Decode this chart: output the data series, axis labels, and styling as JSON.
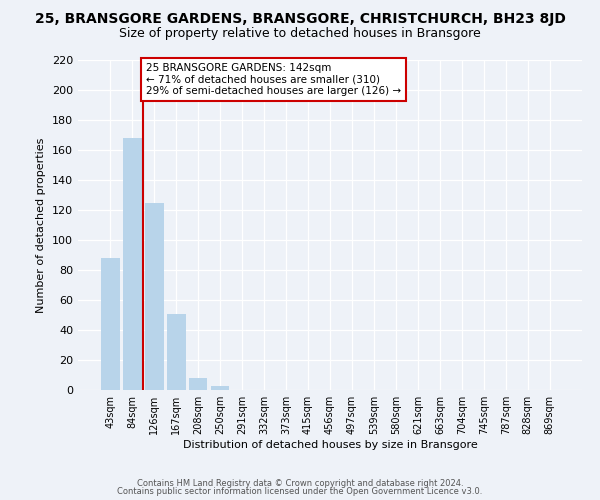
{
  "title": "25, BRANSGORE GARDENS, BRANSGORE, CHRISTCHURCH, BH23 8JD",
  "subtitle": "Size of property relative to detached houses in Bransgore",
  "xlabel": "Distribution of detached houses by size in Bransgore",
  "ylabel": "Number of detached properties",
  "bar_labels": [
    "43sqm",
    "84sqm",
    "126sqm",
    "167sqm",
    "208sqm",
    "250sqm",
    "291sqm",
    "332sqm",
    "373sqm",
    "415sqm",
    "456sqm",
    "497sqm",
    "539sqm",
    "580sqm",
    "621sqm",
    "663sqm",
    "704sqm",
    "745sqm",
    "787sqm",
    "828sqm",
    "869sqm"
  ],
  "bar_values": [
    88,
    168,
    125,
    51,
    8,
    3,
    0,
    0,
    0,
    0,
    0,
    0,
    0,
    0,
    0,
    0,
    0,
    0,
    0,
    0,
    0
  ],
  "bar_color": "#b8d4ea",
  "vline_color": "#cc0000",
  "annotation_line1": "25 BRANSGORE GARDENS: 142sqm",
  "annotation_line2": "← 71% of detached houses are smaller (310)",
  "annotation_line3": "29% of semi-detached houses are larger (126) →",
  "annotation_box_facecolor": "#ffffff",
  "annotation_box_edgecolor": "#cc0000",
  "ylim": [
    0,
    220
  ],
  "yticks": [
    0,
    20,
    40,
    60,
    80,
    100,
    120,
    140,
    160,
    180,
    200,
    220
  ],
  "footer_line1": "Contains HM Land Registry data © Crown copyright and database right 2024.",
  "footer_line2": "Contains public sector information licensed under the Open Government Licence v3.0.",
  "bg_color": "#eef2f8",
  "title_fontsize": 10,
  "subtitle_fontsize": 9,
  "bar_fontsize": 7,
  "ylabel_fontsize": 8,
  "xlabel_fontsize": 8
}
